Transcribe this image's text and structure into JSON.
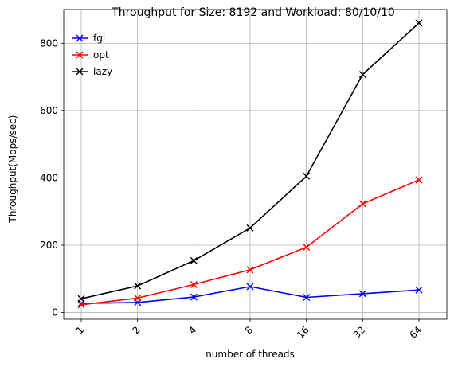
{
  "chart_data": {
    "type": "line",
    "title": "Throughput for Size: 8192 and Workload: 80/10/10",
    "xlabel": "number of threads",
    "ylabel": "Throughput(Mops/sec)",
    "categories": [
      "1",
      "2",
      "4",
      "8",
      "16",
      "32",
      "64"
    ],
    "ylim": [
      -20,
      900
    ],
    "yticks": [
      0,
      200,
      400,
      600,
      800
    ],
    "grid": true,
    "legend": "top-left",
    "marker": "x",
    "series": [
      {
        "name": "fgl",
        "color": "#0000ff",
        "values": [
          27,
          30,
          46,
          77,
          45,
          56,
          67
        ]
      },
      {
        "name": "opt",
        "color": "#ff0000",
        "values": [
          23,
          43,
          83,
          127,
          194,
          323,
          394
        ]
      },
      {
        "name": "lazy",
        "color": "#000000",
        "values": [
          41,
          79,
          154,
          251,
          405,
          707,
          860
        ]
      }
    ]
  }
}
